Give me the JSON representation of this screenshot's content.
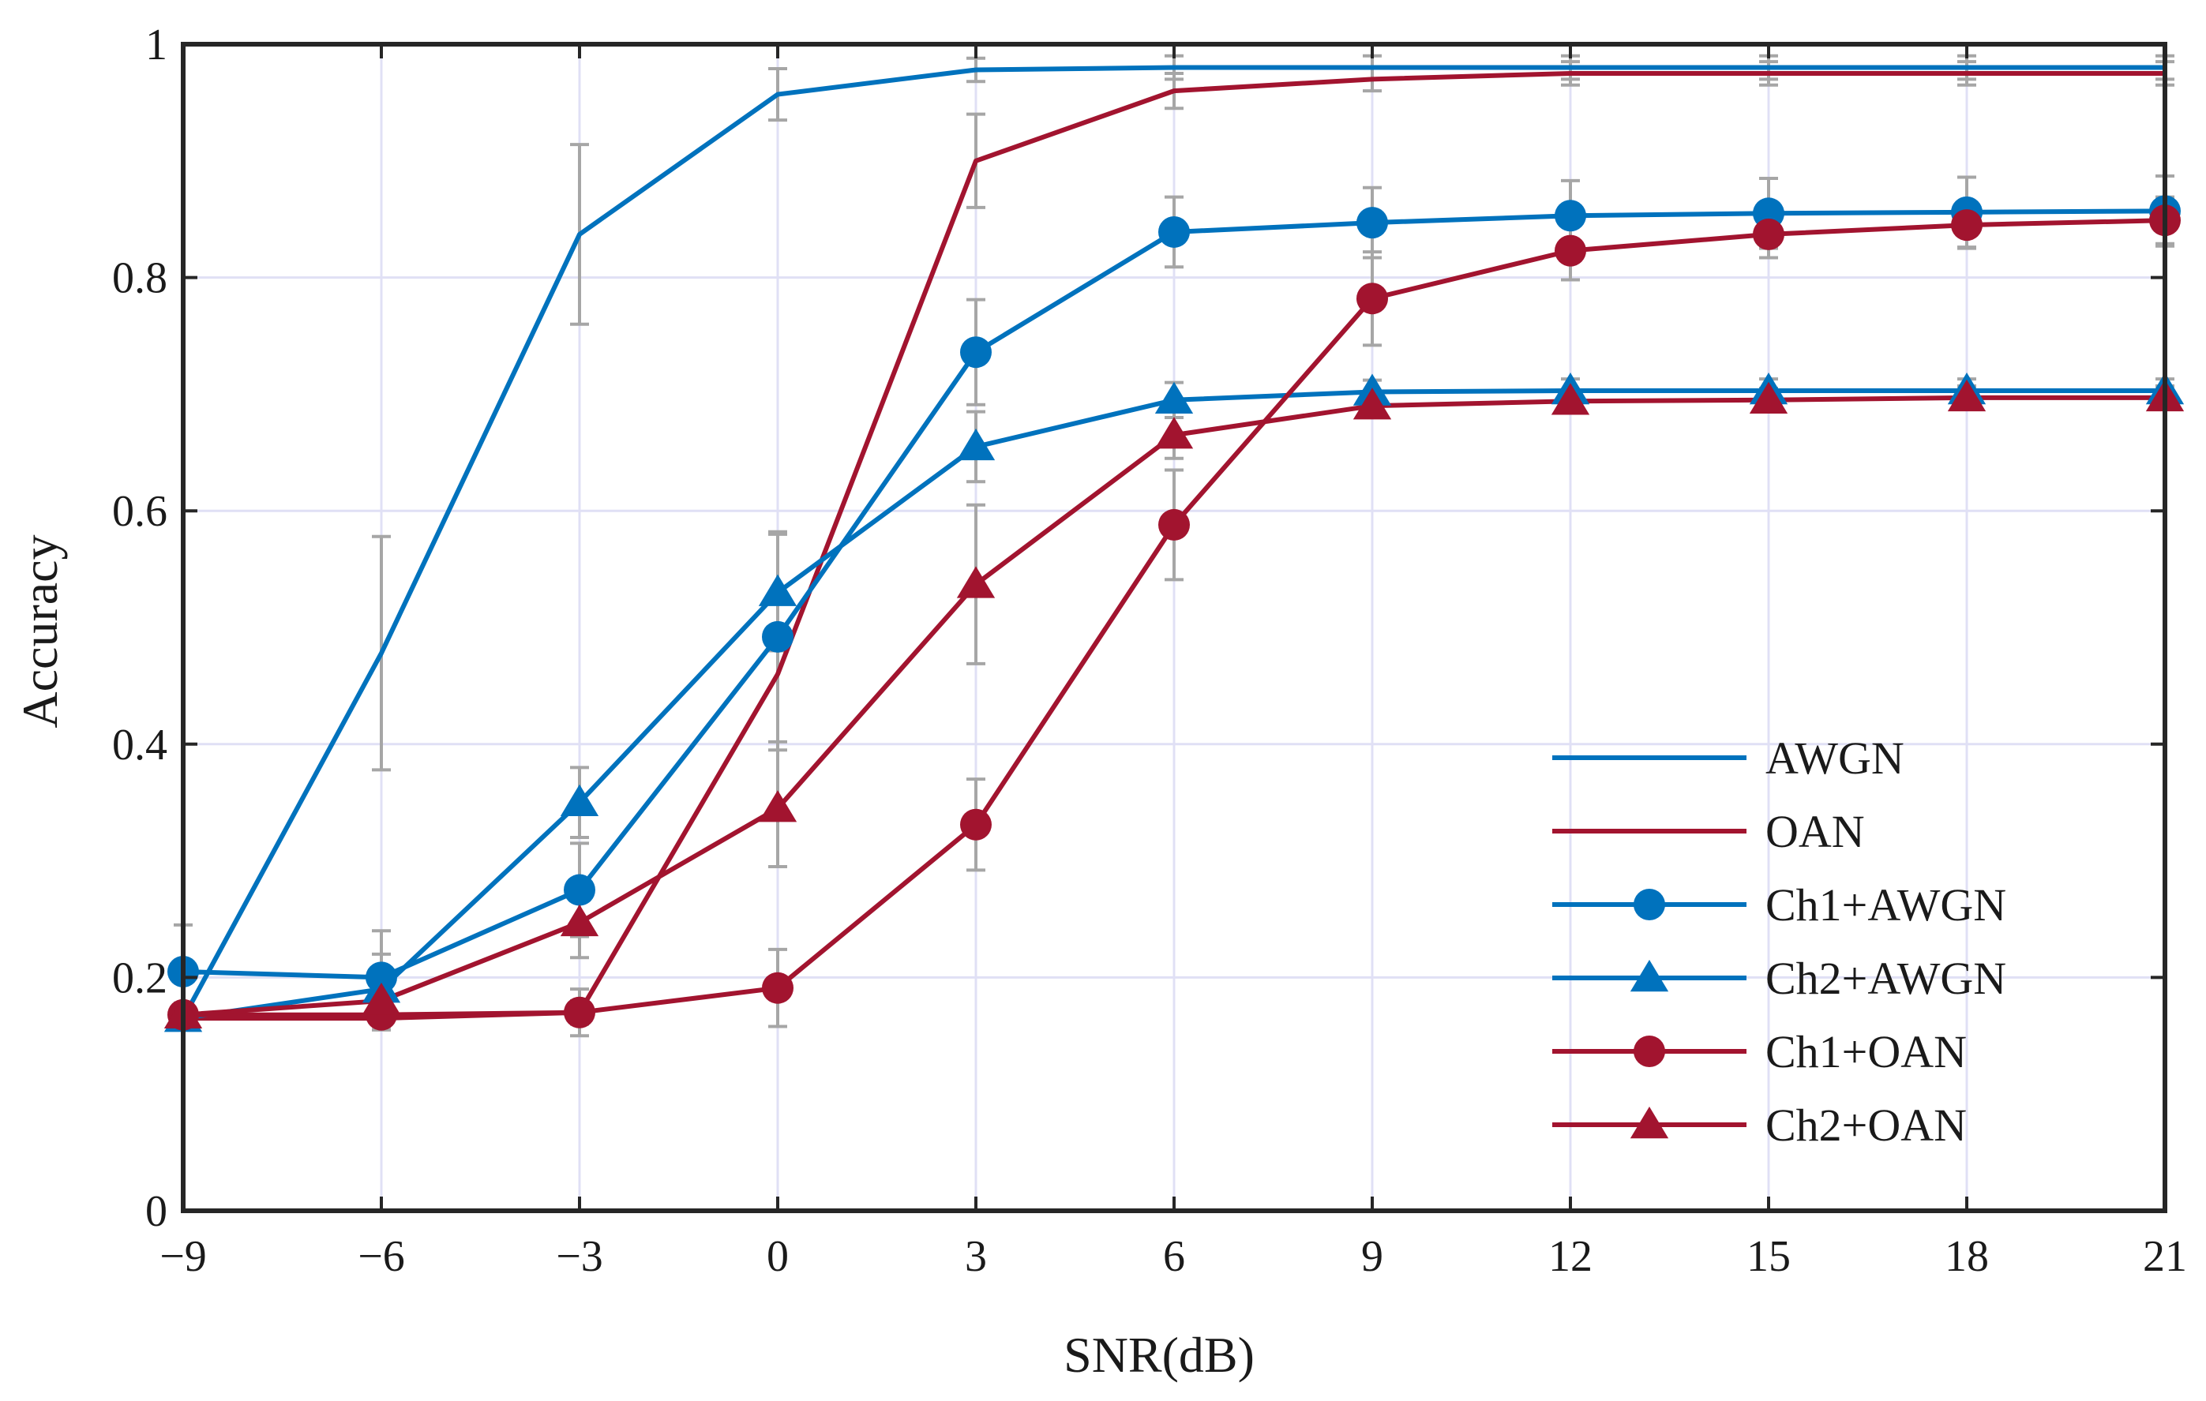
{
  "chart_data": {
    "type": "line",
    "title": "",
    "xlabel": "SNR(dB)",
    "ylabel": "Accuracy",
    "xlim": [
      -9,
      21
    ],
    "ylim": [
      0,
      1
    ],
    "x": [
      -9,
      -6,
      -3,
      0,
      3,
      6,
      9,
      12,
      15,
      18,
      21
    ],
    "xtick_labels": [
      "−9",
      "−6",
      "−3",
      "0",
      "3",
      "6",
      "9",
      "12",
      "15",
      "18",
      "21"
    ],
    "ytick_values": [
      0,
      0.2,
      0.4,
      0.6,
      0.8,
      1
    ],
    "ytick_labels": [
      "0",
      "0.2",
      "0.4",
      "0.6",
      "0.8",
      "1"
    ],
    "grid": true,
    "legend_position": "bottom-right",
    "colors": {
      "blue": "#0072BD",
      "red": "#A2142F",
      "errorbar": "#A6A6A6",
      "grid": "#E0E0F5"
    },
    "series": [
      {
        "name": "AWGN",
        "color": "#0072BD",
        "marker": "none",
        "values": [
          0.165,
          0.478,
          0.837,
          0.957,
          0.978,
          0.98,
          0.98,
          0.98,
          0.98,
          0.98,
          0.98
        ],
        "errors": [
          0.01,
          0.1,
          0.077,
          0.022,
          0.01,
          0.01,
          0.01,
          0.01,
          0.01,
          0.01,
          0.01
        ]
      },
      {
        "name": "OAN",
        "color": "#A2142F",
        "marker": "none",
        "values": [
          0.165,
          0.165,
          0.17,
          0.46,
          0.9,
          0.96,
          0.97,
          0.975,
          0.975,
          0.975,
          0.975
        ],
        "errors": [
          0.01,
          0.01,
          0.02,
          0.12,
          0.04,
          0.015,
          0.01,
          0.01,
          0.01,
          0.01,
          0.01
        ]
      },
      {
        "name": "Ch1+AWGN",
        "color": "#0072BD",
        "marker": "circle",
        "values": [
          0.205,
          0.2,
          0.275,
          0.492,
          0.736,
          0.839,
          0.847,
          0.853,
          0.855,
          0.856,
          0.857
        ],
        "errors": [
          0.04,
          0.04,
          0.04,
          0.09,
          0.045,
          0.03,
          0.03,
          0.03,
          0.03,
          0.03,
          0.03
        ]
      },
      {
        "name": "Ch2+AWGN",
        "color": "#0072BD",
        "marker": "triangle",
        "values": [
          0.165,
          0.19,
          0.35,
          0.53,
          0.655,
          0.695,
          0.702,
          0.703,
          0.703,
          0.703,
          0.703
        ],
        "errors": [
          0.01,
          0.03,
          0.03,
          0.05,
          0.03,
          0.015,
          0.01,
          0.01,
          0.01,
          0.01,
          0.01
        ]
      },
      {
        "name": "Ch1+OAN",
        "color": "#A2142F",
        "marker": "circle",
        "values": [
          0.168,
          0.168,
          0.17,
          0.191,
          0.331,
          0.588,
          0.782,
          0.823,
          0.837,
          0.845,
          0.849
        ],
        "errors": [
          0.01,
          0.01,
          0.01,
          0.033,
          0.039,
          0.047,
          0.04,
          0.025,
          0.02,
          0.02,
          0.02
        ]
      },
      {
        "name": "Ch2+OAN",
        "color": "#A2142F",
        "marker": "triangle",
        "values": [
          0.168,
          0.18,
          0.247,
          0.345,
          0.537,
          0.665,
          0.69,
          0.694,
          0.695,
          0.697,
          0.697
        ],
        "errors": [
          0.01,
          0.02,
          0.03,
          0.05,
          0.068,
          0.02,
          0.01,
          0.01,
          0.01,
          0.01,
          0.01
        ]
      }
    ]
  }
}
